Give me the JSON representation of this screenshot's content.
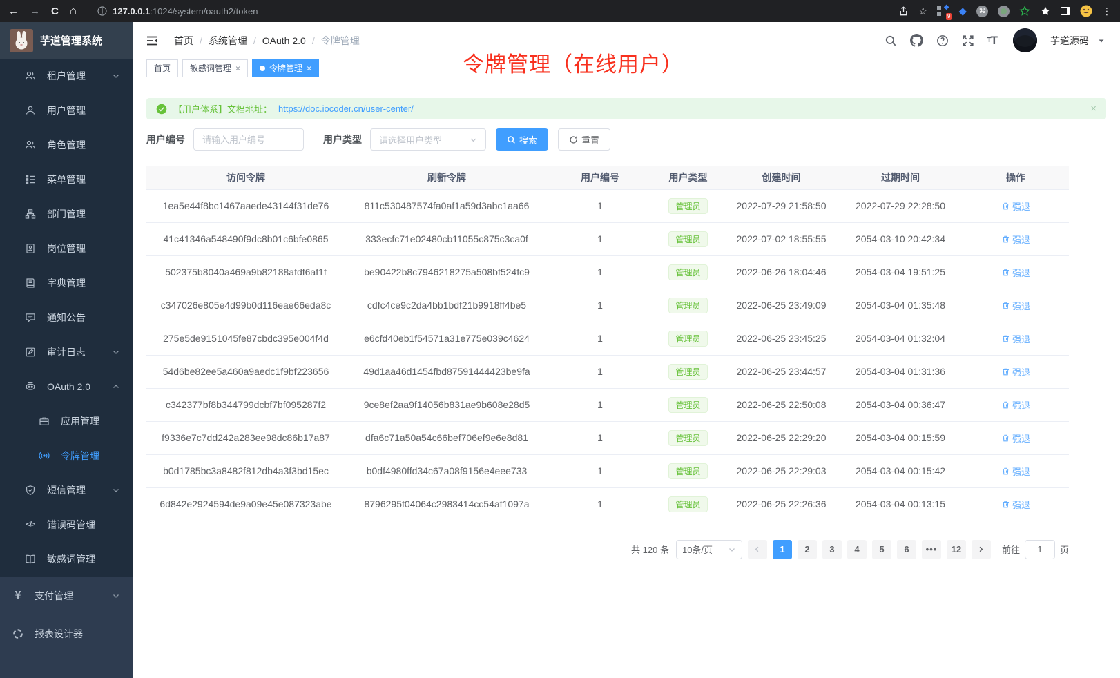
{
  "colors": {
    "accent": "#409eff",
    "success": "#67c23a",
    "annotation_red": "#f8301e"
  },
  "browser": {
    "url_host": "127.0.0.1",
    "url_rest": ":1024/system/oauth2/token",
    "nav_icons": [
      "back-icon",
      "forward-icon",
      "refresh-icon",
      "home-icon",
      "info-icon"
    ],
    "right_icons": [
      "share-icon",
      "bookmark-star-icon",
      "extensions-badge-icon",
      "gem-extension-icon",
      "command-extension-icon",
      "record-extension-icon",
      "green-star-extension-icon",
      "white-star-extension-icon",
      "side-panel-icon",
      "profile-emoji-icon",
      "browser-menu-icon"
    ],
    "extension_badge": "9"
  },
  "sidebar": {
    "title": "芋道管理系统",
    "sections": [
      {
        "items": [
          {
            "key": "tenant",
            "icon": "users-icon",
            "label": "租户管理",
            "chevron": "down"
          },
          {
            "key": "user",
            "icon": "user-icon",
            "label": "用户管理"
          },
          {
            "key": "role",
            "icon": "role-icon",
            "label": "角色管理"
          },
          {
            "key": "menu",
            "icon": "menu-tree-icon",
            "label": "菜单管理"
          },
          {
            "key": "dept",
            "icon": "dept-icon",
            "label": "部门管理"
          },
          {
            "key": "post",
            "icon": "post-icon",
            "label": "岗位管理"
          },
          {
            "key": "dict",
            "icon": "dict-icon",
            "label": "字典管理"
          },
          {
            "key": "notice",
            "icon": "notice-icon",
            "label": "通知公告"
          },
          {
            "key": "audit",
            "icon": "audit-icon",
            "label": "审计日志",
            "chevron": "down"
          },
          {
            "key": "oauth2",
            "icon": "oauth-icon",
            "label": "OAuth 2.0",
            "chevron": "up"
          },
          {
            "key": "oauth2-app",
            "icon": "app-icon",
            "label": "应用管理",
            "child": true
          },
          {
            "key": "oauth2-token",
            "icon": "token-icon",
            "label": "令牌管理",
            "child": true,
            "active": true
          },
          {
            "key": "sms",
            "icon": "sms-shield-icon",
            "label": "短信管理",
            "chevron": "down"
          },
          {
            "key": "errcode",
            "icon": "errcode-icon",
            "label": "错误码管理"
          },
          {
            "key": "sensitive",
            "icon": "sensitive-book-icon",
            "label": "敏感词管理"
          }
        ]
      },
      {
        "items": [
          {
            "key": "pay",
            "icon": "pay-yen-icon",
            "label": "支付管理",
            "chevron": "down"
          },
          {
            "key": "report",
            "icon": "report-icon",
            "label": "报表设计器"
          }
        ]
      }
    ]
  },
  "header": {
    "breadcrumb": [
      "首页",
      "系统管理",
      "OAuth 2.0",
      "令牌管理"
    ],
    "icons": [
      "search-icon",
      "github-icon",
      "help-icon",
      "fullscreen-icon",
      "font-size-icon"
    ],
    "username": "芋道源码"
  },
  "tabs": [
    {
      "label": "首页"
    },
    {
      "label": "敏感词管理",
      "closable": true
    },
    {
      "label": "令牌管理",
      "closable": true,
      "active": true
    }
  ],
  "annotation": {
    "text": "令牌管理（在线用户）"
  },
  "alert": {
    "text": "【用户体系】文档地址：",
    "link": "https://doc.iocoder.cn/user-center/",
    "close": "×"
  },
  "filter": {
    "user_id_label": "用户编号",
    "user_id_placeholder": "请输入用户编号",
    "user_type_label": "用户类型",
    "user_type_placeholder": "请选择用户类型",
    "search_label": "搜索",
    "reset_label": "重置"
  },
  "table": {
    "headers": [
      "访问令牌",
      "刷新令牌",
      "用户编号",
      "用户类型",
      "创建时间",
      "过期时间",
      "操作"
    ],
    "action_label": "强退",
    "rows": [
      {
        "access_token": "1ea5e44f8bc1467aaede43144f31de76",
        "refresh_token": "811c530487574fa0af1a59d3abc1aa66",
        "user_id": "1",
        "user_type": "管理员",
        "create_time": "2022-07-29 21:58:50",
        "expire_time": "2022-07-29 22:28:50"
      },
      {
        "access_token": "41c41346a548490f9dc8b01c6bfe0865",
        "refresh_token": "333ecfc71e02480cb11055c875c3ca0f",
        "user_id": "1",
        "user_type": "管理员",
        "create_time": "2022-07-02 18:55:55",
        "expire_time": "2054-03-10 20:42:34"
      },
      {
        "access_token": "502375b8040a469a9b82188afdf6af1f",
        "refresh_token": "be90422b8c7946218275a508bf524fc9",
        "user_id": "1",
        "user_type": "管理员",
        "create_time": "2022-06-26 18:04:46",
        "expire_time": "2054-03-04 19:51:25"
      },
      {
        "access_token": "c347026e805e4d99b0d116eae66eda8c",
        "refresh_token": "cdfc4ce9c2da4bb1bdf21b9918ff4be5",
        "user_id": "1",
        "user_type": "管理员",
        "create_time": "2022-06-25 23:49:09",
        "expire_time": "2054-03-04 01:35:48"
      },
      {
        "access_token": "275e5de9151045fe87cbdc395e004f4d",
        "refresh_token": "e6cfd40eb1f54571a31e775e039c4624",
        "user_id": "1",
        "user_type": "管理员",
        "create_time": "2022-06-25 23:45:25",
        "expire_time": "2054-03-04 01:32:04"
      },
      {
        "access_token": "54d6be82ee5a460a9aedc1f9bf223656",
        "refresh_token": "49d1aa46d1454fbd87591444423be9fa",
        "user_id": "1",
        "user_type": "管理员",
        "create_time": "2022-06-25 23:44:57",
        "expire_time": "2054-03-04 01:31:36"
      },
      {
        "access_token": "c342377bf8b344799dcbf7bf095287f2",
        "refresh_token": "9ce8ef2aa9f14056b831ae9b608e28d5",
        "user_id": "1",
        "user_type": "管理员",
        "create_time": "2022-06-25 22:50:08",
        "expire_time": "2054-03-04 00:36:47"
      },
      {
        "access_token": "f9336e7c7dd242a283ee98dc86b17a87",
        "refresh_token": "dfa6c71a50a54c66bef706ef9e6e8d81",
        "user_id": "1",
        "user_type": "管理员",
        "create_time": "2022-06-25 22:29:20",
        "expire_time": "2054-03-04 00:15:59"
      },
      {
        "access_token": "b0d1785bc3a8482f812db4a3f3bd15ec",
        "refresh_token": "b0df4980ffd34c67a08f9156e4eee733",
        "user_id": "1",
        "user_type": "管理员",
        "create_time": "2022-06-25 22:29:03",
        "expire_time": "2054-03-04 00:15:42"
      },
      {
        "access_token": "6d842e2924594de9a09e45e087323abe",
        "refresh_token": "8796295f04064c2983414cc54af1097a",
        "user_id": "1",
        "user_type": "管理员",
        "create_time": "2022-06-25 22:26:36",
        "expire_time": "2054-03-04 00:13:15"
      }
    ]
  },
  "pagination": {
    "total": "共 120 条",
    "page_size": "10条/页",
    "pages": [
      "1",
      "2",
      "3",
      "4",
      "5",
      "6",
      "•••",
      "12"
    ],
    "active": "1",
    "goto_label": "前往",
    "goto_value": "1",
    "unit": "页"
  }
}
